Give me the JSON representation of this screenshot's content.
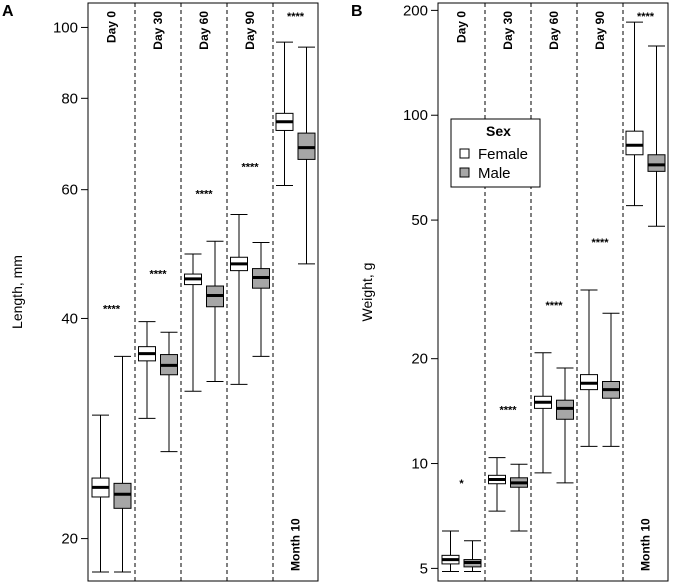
{
  "colors": {
    "female": "#ffffff",
    "male": "#a6a6a6",
    "line": "#000000"
  },
  "chart_data": [
    {
      "id": "A",
      "type": "boxplot",
      "panel_label": "A",
      "ylabel": "Length, mm",
      "yscale": "log",
      "ylim": [
        17.5,
        108
      ],
      "yticks": [
        20,
        40,
        60,
        80,
        100
      ],
      "groups": [
        "Day 0",
        "Day 30",
        "Day 60",
        "Day 90",
        "Month 10"
      ],
      "group_label_position": [
        "top",
        "top",
        "top",
        "top",
        "bottom"
      ],
      "series": [
        {
          "name": "Female",
          "boxes": [
            {
              "min": 18.0,
              "q1": 22.8,
              "median": 23.5,
              "q3": 24.2,
              "max": 29.5
            },
            {
              "min": 29.2,
              "q1": 35.0,
              "median": 35.8,
              "q3": 36.6,
              "max": 39.6
            },
            {
              "min": 31.8,
              "q1": 44.5,
              "median": 45.3,
              "q3": 46.0,
              "max": 49.0
            },
            {
              "min": 32.5,
              "q1": 46.5,
              "median": 47.5,
              "q3": 48.5,
              "max": 55.5
            },
            {
              "min": 60.8,
              "q1": 72.3,
              "median": 74.3,
              "q3": 76.3,
              "max": 95.5
            }
          ]
        },
        {
          "name": "Male",
          "boxes": [
            {
              "min": 18.0,
              "q1": 22.0,
              "median": 23.0,
              "q3": 23.8,
              "max": 35.5
            },
            {
              "min": 26.3,
              "q1": 33.5,
              "median": 34.5,
              "q3": 35.7,
              "max": 38.3
            },
            {
              "min": 32.8,
              "q1": 41.5,
              "median": 43.0,
              "q3": 44.3,
              "max": 51.0
            },
            {
              "min": 35.5,
              "q1": 44.0,
              "median": 45.5,
              "q3": 46.8,
              "max": 50.8
            },
            {
              "min": 47.5,
              "q1": 66.0,
              "median": 68.5,
              "q3": 71.7,
              "max": 94.0
            }
          ]
        }
      ],
      "significance": [
        "****",
        "****",
        "****",
        "****",
        "****"
      ]
    },
    {
      "id": "B",
      "type": "boxplot",
      "panel_label": "B",
      "ylabel": "Weight, g",
      "yscale": "log",
      "ylim": [
        4.6,
        210
      ],
      "yticks": [
        5,
        10,
        20,
        50,
        100,
        200
      ],
      "groups": [
        "Day 0",
        "Day 30",
        "Day 60",
        "Day 90",
        "Month 10"
      ],
      "group_label_position": [
        "top",
        "top",
        "top",
        "top",
        "bottom"
      ],
      "series": [
        {
          "name": "Female",
          "boxes": [
            {
              "min": 4.9,
              "q1": 5.15,
              "median": 5.3,
              "q3": 5.45,
              "max": 6.4
            },
            {
              "min": 7.3,
              "q1": 8.75,
              "median": 9.0,
              "q3": 9.25,
              "max": 10.4
            },
            {
              "min": 9.4,
              "q1": 14.4,
              "median": 15.0,
              "q3": 15.6,
              "max": 20.8
            },
            {
              "min": 11.2,
              "q1": 16.3,
              "median": 17.0,
              "q3": 18.0,
              "max": 31.5
            },
            {
              "min": 55.0,
              "q1": 77.0,
              "median": 82.0,
              "q3": 90.0,
              "max": 185.0
            }
          ]
        },
        {
          "name": "Male",
          "boxes": [
            {
              "min": 4.9,
              "q1": 5.05,
              "median": 5.2,
              "q3": 5.3,
              "max": 6.0
            },
            {
              "min": 6.4,
              "q1": 8.55,
              "median": 8.8,
              "q3": 9.1,
              "max": 9.95
            },
            {
              "min": 8.8,
              "q1": 13.4,
              "median": 14.4,
              "q3": 15.2,
              "max": 18.8
            },
            {
              "min": 11.2,
              "q1": 15.4,
              "median": 16.3,
              "q3": 17.2,
              "max": 27.0
            },
            {
              "min": 48.0,
              "q1": 69.0,
              "median": 72.0,
              "q3": 77.0,
              "max": 158.0
            }
          ]
        }
      ],
      "significance": [
        "*",
        "****",
        "****",
        "****",
        "****"
      ],
      "legend": {
        "title": "Sex",
        "items": [
          "Female",
          "Male"
        ],
        "position": "upper-right"
      }
    }
  ]
}
